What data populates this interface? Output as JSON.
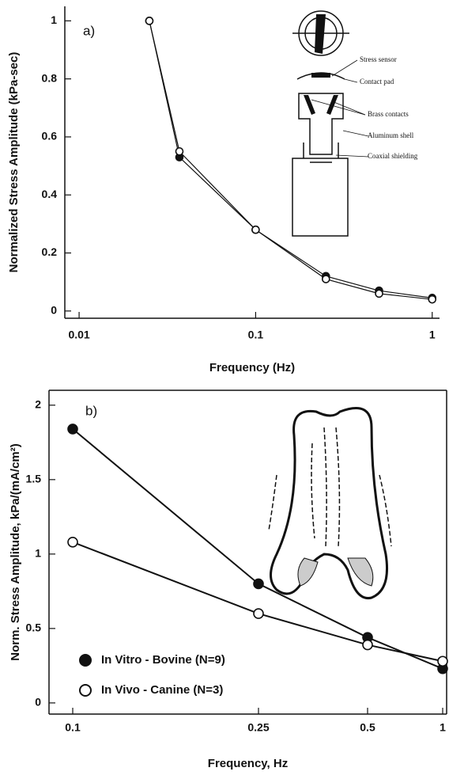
{
  "chart_data": [
    {
      "type": "line",
      "panel_label": "a)",
      "x_label": "Frequency (Hz)",
      "y_label": "Normalized Stress Amplitude (kPa-sec)",
      "xscale": "log",
      "xlim": [
        0.0083,
        1.1
      ],
      "xticks": [
        0.01,
        0.1,
        1
      ],
      "ylim": [
        -0.025,
        1.05
      ],
      "yticks": [
        0,
        0.2,
        0.4,
        0.6,
        0.8,
        1
      ],
      "x": [
        0.025,
        0.037,
        0.1,
        0.25,
        0.5,
        1
      ],
      "series": [
        {
          "name": "filled",
          "marker": "filled",
          "color": "#111111",
          "values": [
            1.0,
            0.53,
            0.28,
            0.12,
            0.07,
            0.045
          ]
        },
        {
          "name": "open",
          "marker": "open",
          "color": "#111111",
          "values": [
            1.0,
            0.55,
            0.28,
            0.11,
            0.06,
            0.04
          ]
        }
      ],
      "inset_labels": [
        "Stress sensor",
        "Contact pad",
        "Brass contacts",
        "Aluminum shell",
        "Coaxial shielding"
      ]
    },
    {
      "type": "line",
      "panel_label": "b)",
      "x_label": "Frequency, Hz",
      "y_label": "Norm. Stress Amplitude, kPa/(mA/cm²)",
      "categories": [
        "0.1",
        "0.25",
        "0.5",
        "1"
      ],
      "ylim": [
        -0.075,
        2.1
      ],
      "yticks": [
        0,
        0.5,
        1,
        1.5,
        2
      ],
      "legend": "lower left",
      "series": [
        {
          "name": "In Vitro - Bovine (N=9)",
          "marker": "filled",
          "color": "#111111",
          "values": [
            1.84,
            0.8,
            0.44,
            0.23
          ]
        },
        {
          "name": "In Vivo - Canine (N=3)",
          "marker": "open",
          "color": "#111111",
          "values": [
            1.08,
            0.6,
            0.39,
            0.28
          ]
        }
      ]
    }
  ]
}
